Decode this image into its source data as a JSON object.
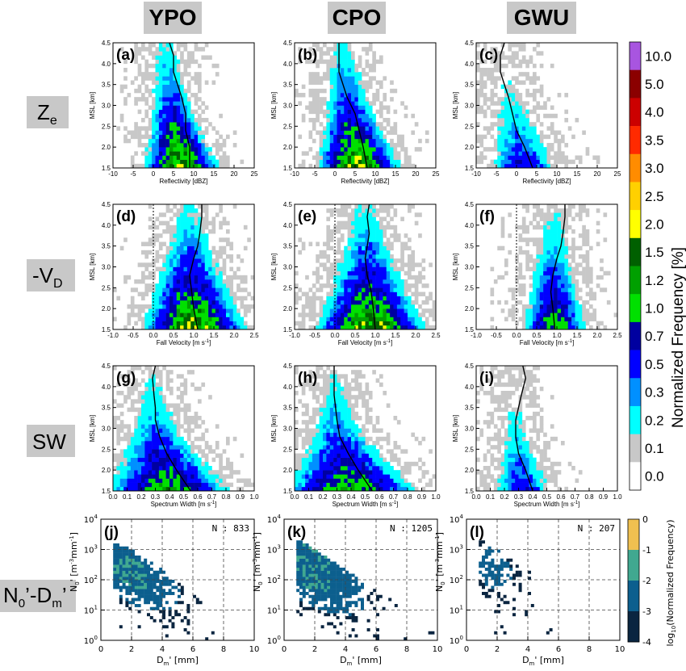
{
  "columns": [
    "YPO",
    "CPO",
    "GWU"
  ],
  "rows": {
    "ze": {
      "base": "Z",
      "sub": "e"
    },
    "vd": {
      "base": "-V",
      "sub": "D"
    },
    "sw": {
      "base": "SW",
      "sub": ""
    },
    "nd": {
      "t1": "N",
      "s1": "0",
      "t2": "’-D",
      "s2": "m",
      "t3": "’"
    }
  },
  "ylabel_msl": "MSL [km]",
  "xlabel_ze": "Reflectivity [dBZ]",
  "xlabel_vd_base": "Fall Velocity [m s",
  "xlabel_sw_base": "Spectrum Width [m s",
  "xlabel_exp": "-1",
  "xlabel_sw_end": "]",
  "xlabel_nd": {
    "a": "D",
    "b": "m",
    "c": "' [mm]"
  },
  "ylabel_nd": {
    "a": "N",
    "b": "0",
    "c": "' [m",
    "d": "-3",
    "e": "mm",
    "f": "-1",
    "g": "]"
  },
  "panel_letters": [
    "(a)",
    "(b)",
    "(c)",
    "(d)",
    "(e)",
    "(f)",
    "(g)",
    "(h)",
    "(i)",
    "(j)",
    "(k)",
    "(l)"
  ],
  "counts": [
    "N : 833",
    "N : 1205",
    "N : 207"
  ],
  "colorbar": {
    "title": "Normalized Frequency [%]",
    "labels": [
      "10.0",
      "5.0",
      "4.0",
      "3.5",
      "3.0",
      "2.5",
      "2.0",
      "1.5",
      "1.2",
      "1.0",
      "0.7",
      "0.5",
      "0.3",
      "0.2",
      "0.1",
      "0.0"
    ],
    "colors": [
      "#a855e0",
      "#8b0000",
      "#cc0000",
      "#ff2a00",
      "#ff8c00",
      "#ffd000",
      "#ffff00",
      "#006000",
      "#00a000",
      "#00e000",
      "#0000a0",
      "#0000ff",
      "#0090ff",
      "#00ffff",
      "#c8c8c8",
      "#ffffff"
    ]
  },
  "colorbar2": {
    "title_a": "log",
    "title_b": "10",
    "title_c": "(Normalized Frequency)",
    "labels": [
      "0",
      "-1",
      "-2",
      "-3",
      "-4"
    ],
    "colors": [
      "#f0c050",
      "#40a890",
      "#0c5f8e",
      "#0a2540"
    ]
  },
  "chart_data": [
    {
      "type": "heatmap",
      "panel": "(a)",
      "site": "YPO",
      "xlabel": "Reflectivity [dBZ]",
      "ylabel": "MSL [km]",
      "xlim": [
        -10,
        25
      ],
      "ylim": [
        1.5,
        4.5
      ],
      "xticks": [
        -10,
        -5,
        0,
        5,
        10,
        15,
        20,
        25
      ],
      "yticks": [
        1.5,
        2.0,
        2.5,
        3.0,
        3.5,
        4.0,
        4.5
      ],
      "mean_profile": {
        "x": [
          9,
          9,
          8,
          8,
          7,
          6,
          5,
          5,
          4
        ],
        "y": [
          1.5,
          2.0,
          2.4,
          2.8,
          3.2,
          3.5,
          3.8,
          4.2,
          4.5
        ]
      },
      "distribution": {
        "center": [
          7,
          4.5,
          3
        ],
        "spread": [
          4,
          2.5,
          2.5
        ],
        "peak": 1.5
      }
    },
    {
      "type": "heatmap",
      "panel": "(b)",
      "site": "CPO",
      "xlabel": "Reflectivity [dBZ]",
      "ylabel": "MSL [km]",
      "xlim": [
        -10,
        25
      ],
      "ylim": [
        1.5,
        4.5
      ],
      "xticks": [
        -10,
        -5,
        0,
        5,
        10,
        15,
        20,
        25
      ],
      "yticks": [
        1.5,
        2.0,
        2.5,
        3.0,
        3.5,
        4.0,
        4.5
      ],
      "mean_profile": {
        "x": [
          8,
          7,
          6,
          5,
          3,
          2,
          1,
          1,
          1
        ],
        "y": [
          1.5,
          2.0,
          2.4,
          2.8,
          3.2,
          3.5,
          3.8,
          4.2,
          4.5
        ]
      },
      "distribution": {
        "center": [
          6,
          3.5,
          1.5
        ],
        "spread": [
          4.5,
          3,
          2.5
        ],
        "peak": 1.5
      }
    },
    {
      "type": "heatmap",
      "panel": "(c)",
      "site": "GWU",
      "xlabel": "Reflectivity [dBZ]",
      "ylabel": "MSL [km]",
      "xlim": [
        -10,
        25
      ],
      "ylim": [
        1.5,
        4.5
      ],
      "xticks": [
        -10,
        -5,
        0,
        5,
        10,
        15,
        20,
        25
      ],
      "yticks": [
        1.5,
        2.0,
        2.5,
        3.0,
        3.5,
        4.0,
        4.5
      ],
      "mean_profile": {
        "x": [
          4,
          2,
          0,
          -1,
          -2,
          -3,
          -4,
          -4,
          -3
        ],
        "y": [
          1.5,
          2.0,
          2.4,
          2.8,
          3.2,
          3.5,
          3.8,
          4.2,
          4.5
        ]
      },
      "distribution": {
        "center": [
          2,
          -1,
          -4
        ],
        "spread": [
          4,
          3,
          2
        ],
        "peak": 0.5
      }
    },
    {
      "type": "heatmap",
      "panel": "(d)",
      "site": "YPO",
      "xlabel": "Fall Velocity [m s-1]",
      "ylabel": "MSL [km]",
      "xlim": [
        -1.0,
        2.5
      ],
      "ylim": [
        1.5,
        4.5
      ],
      "xticks": [
        -1.0,
        -0.5,
        0.0,
        0.5,
        1.0,
        1.5,
        2.0,
        2.5
      ],
      "yticks": [
        1.5,
        2.0,
        2.5,
        3.0,
        3.5,
        4.0,
        4.5
      ],
      "mean_profile": {
        "x": [
          1.1,
          1.0,
          0.95,
          0.9,
          1.0,
          1.1,
          1.15,
          1.2,
          1.2
        ],
        "y": [
          1.5,
          2.0,
          2.4,
          2.8,
          3.2,
          3.5,
          3.8,
          4.2,
          4.5
        ]
      },
      "distribution": {
        "center": [
          1.0,
          0.9,
          0.85
        ],
        "spread": [
          0.55,
          0.4,
          0.25
        ],
        "peak": 1.5
      }
    },
    {
      "type": "heatmap",
      "panel": "(e)",
      "site": "CPO",
      "xlabel": "Fall Velocity [m s-1]",
      "ylabel": "MSL [km]",
      "xlim": [
        -1.0,
        2.5
      ],
      "ylim": [
        1.5,
        4.5
      ],
      "xticks": [
        -1.0,
        -0.5,
        0.0,
        0.5,
        1.0,
        1.5,
        2.0,
        2.5
      ],
      "yticks": [
        1.5,
        2.0,
        2.5,
        3.0,
        3.5,
        4.0,
        4.5
      ],
      "mean_profile": {
        "x": [
          1.0,
          0.95,
          0.9,
          0.8,
          0.75,
          0.8,
          0.85,
          0.8,
          0.85
        ],
        "y": [
          1.5,
          2.0,
          2.4,
          2.8,
          3.2,
          3.5,
          3.8,
          4.2,
          4.5
        ]
      },
      "distribution": {
        "center": [
          0.9,
          0.8,
          0.75
        ],
        "spread": [
          0.6,
          0.4,
          0.25
        ],
        "peak": 1.5
      }
    },
    {
      "type": "heatmap",
      "panel": "(f)",
      "site": "GWU",
      "xlabel": "Fall Velocity [m s-1]",
      "ylabel": "MSL [km]",
      "xlim": [
        -1.0,
        2.5
      ],
      "ylim": [
        1.5,
        4.5
      ],
      "xticks": [
        -1.0,
        -0.5,
        0.0,
        0.5,
        1.0,
        1.5,
        2.0,
        2.5
      ],
      "yticks": [
        1.5,
        2.0,
        2.5,
        3.0,
        3.5,
        4.0,
        4.5
      ],
      "mean_profile": {
        "x": [
          0.95,
          0.9,
          0.85,
          0.9,
          1.0,
          1.1,
          1.15,
          1.2,
          1.2
        ],
        "y": [
          1.5,
          2.0,
          2.4,
          2.8,
          3.2,
          3.5,
          3.8,
          4.2,
          4.5
        ]
      },
      "distribution": {
        "center": [
          0.95,
          0.9,
          0.95
        ],
        "spread": [
          0.35,
          0.3,
          0.25
        ],
        "peak": 1.0
      }
    },
    {
      "type": "heatmap",
      "panel": "(g)",
      "site": "YPO",
      "xlabel": "Spectrum Width [m s-1]",
      "ylabel": "MSL [km]",
      "xlim": [
        0.0,
        1.0
      ],
      "ylim": [
        1.5,
        4.5
      ],
      "xticks": [
        0.0,
        0.1,
        0.2,
        0.3,
        0.4,
        0.5,
        0.6,
        0.7,
        0.8,
        0.9,
        1.0
      ],
      "yticks": [
        1.5,
        2.0,
        2.5,
        3.0,
        3.5,
        4.0,
        4.5
      ],
      "mean_profile": {
        "x": [
          0.55,
          0.45,
          0.38,
          0.33,
          0.3,
          0.3,
          0.29,
          0.28,
          0.3
        ],
        "y": [
          1.5,
          2.0,
          2.4,
          2.8,
          3.2,
          3.5,
          3.8,
          4.2,
          4.5
        ]
      },
      "distribution": {
        "center": [
          0.4,
          0.3,
          0.28
        ],
        "spread": [
          0.2,
          0.1,
          0.06
        ],
        "peak": 1.0
      }
    },
    {
      "type": "heatmap",
      "panel": "(h)",
      "site": "CPO",
      "xlabel": "Spectrum Width [m s-1]",
      "ylabel": "MSL [km]",
      "xlim": [
        0.0,
        1.0
      ],
      "ylim": [
        1.5,
        4.5
      ],
      "xticks": [
        0.0,
        0.1,
        0.2,
        0.3,
        0.4,
        0.5,
        0.6,
        0.7,
        0.8,
        0.9,
        1.0
      ],
      "yticks": [
        1.5,
        2.0,
        2.5,
        3.0,
        3.5,
        4.0,
        4.5
      ],
      "mean_profile": {
        "x": [
          0.55,
          0.45,
          0.38,
          0.32,
          0.3,
          0.29,
          0.28,
          0.28,
          0.28
        ],
        "y": [
          1.5,
          2.0,
          2.4,
          2.8,
          3.2,
          3.5,
          3.8,
          4.2,
          4.5
        ]
      },
      "distribution": {
        "center": [
          0.4,
          0.3,
          0.28
        ],
        "spread": [
          0.22,
          0.1,
          0.06
        ],
        "peak": 1.0
      }
    },
    {
      "type": "heatmap",
      "panel": "(i)",
      "site": "GWU",
      "xlabel": "Spectrum Width [m s-1]",
      "ylabel": "MSL [km]",
      "xlim": [
        0.0,
        1.0
      ],
      "ylim": [
        1.5,
        4.5
      ],
      "xticks": [
        0.0,
        0.1,
        0.2,
        0.3,
        0.4,
        0.5,
        0.6,
        0.7,
        0.8,
        0.9,
        1.0
      ],
      "yticks": [
        1.5,
        2.0,
        2.5,
        3.0,
        3.5,
        4.0,
        4.5
      ],
      "mean_profile": {
        "x": [
          0.4,
          0.35,
          0.3,
          0.28,
          0.28,
          0.3,
          0.32,
          0.35,
          0.33
        ],
        "y": [
          1.5,
          2.0,
          2.4,
          2.8,
          3.2,
          3.5,
          3.8,
          4.2,
          4.5
        ]
      },
      "distribution": {
        "center": [
          0.33,
          0.28,
          0.27
        ],
        "spread": [
          0.1,
          0.06,
          0.05
        ],
        "peak": 0.5
      }
    },
    {
      "type": "heatmap",
      "panel": "(j)",
      "site": "YPO",
      "xlabel": "Dm' [mm]",
      "ylabel": "N0' [m-3 mm-1]",
      "xlim": [
        0,
        10
      ],
      "ylim": [
        1,
        10000
      ],
      "yscale": "log",
      "xticks": [
        0,
        2,
        4,
        6,
        8,
        10
      ],
      "count": 833
    },
    {
      "type": "heatmap",
      "panel": "(k)",
      "site": "CPO",
      "xlabel": "Dm' [mm]",
      "ylabel": "N0' [m-3 mm-1]",
      "xlim": [
        0,
        10
      ],
      "ylim": [
        1,
        10000
      ],
      "yscale": "log",
      "xticks": [
        0,
        2,
        4,
        6,
        8,
        10
      ],
      "count": 1205
    },
    {
      "type": "heatmap",
      "panel": "(l)",
      "site": "GWU",
      "xlabel": "Dm' [mm]",
      "ylabel": "N0' [m-3 mm-1]",
      "xlim": [
        0,
        10
      ],
      "ylim": [
        1,
        10000
      ],
      "yscale": "log",
      "xticks": [
        0,
        2,
        4,
        6,
        8,
        10
      ],
      "count": 207
    }
  ]
}
